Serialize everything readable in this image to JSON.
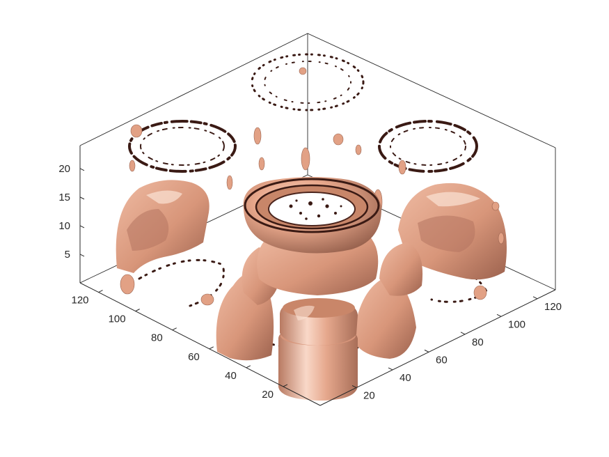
{
  "chart_data": {
    "type": "isosurface-3d",
    "title": "",
    "xlabel": "",
    "ylabel": "",
    "zlabel": "",
    "x_ticks": [
      20,
      40,
      60,
      80,
      100,
      120
    ],
    "y_ticks": [
      20,
      40,
      60,
      80,
      100,
      120
    ],
    "z_ticks": [
      5,
      10,
      15,
      20
    ],
    "xlim": [
      0,
      130
    ],
    "ylim": [
      0,
      130
    ],
    "zlim": [
      0,
      24
    ],
    "view": "isometric",
    "grid": false,
    "box": true,
    "colors": {
      "surface": "#e8a88c",
      "surface_light": "#f6cdb9",
      "surface_shadow": "#a8705c",
      "contour_dark": "#3a1a14",
      "axis": "#262626"
    }
  }
}
